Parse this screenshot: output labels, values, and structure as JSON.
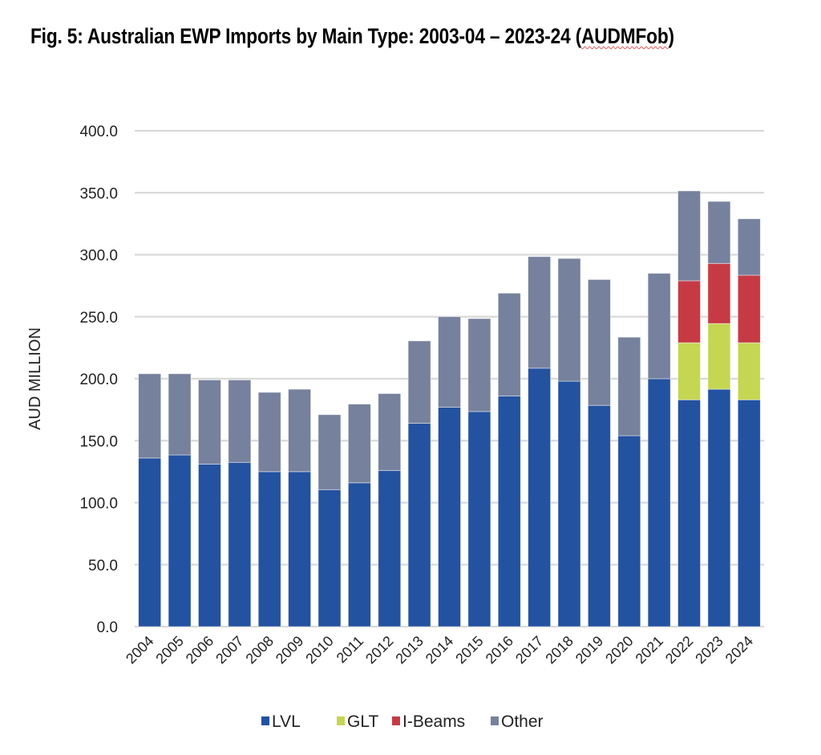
{
  "title": {
    "main": "Fig. 5: Australian EWP Imports by Main Type: 2003-04 – 2023-24 (",
    "flagged_word": "AUDMFob",
    "close": ")"
  },
  "chart_data": {
    "type": "bar",
    "stacked": true,
    "title": "Fig. 5: Australian EWP Imports by Main Type: 2003-04 – 2023-24 (AUDMFob)",
    "xlabel": "",
    "ylabel": "AUD MILLION",
    "ylim": [
      0,
      400
    ],
    "yticks": [
      "0.0",
      "50.0",
      "100.0",
      "150.0",
      "200.0",
      "250.0",
      "300.0",
      "350.0",
      "400.0"
    ],
    "ytick_values": [
      0,
      50,
      100,
      150,
      200,
      250,
      300,
      350,
      400
    ],
    "grid": true,
    "legend_position": "bottom",
    "categories": [
      "2004",
      "2005",
      "2006",
      "2007",
      "2008",
      "2009",
      "2010",
      "2011",
      "2012",
      "2013",
      "2014",
      "2015",
      "2016",
      "2017",
      "2018",
      "2019",
      "2020",
      "2021",
      "2022",
      "2023",
      "2024"
    ],
    "series": [
      {
        "name": "LVL",
        "color": "#2352A0",
        "values": [
          136,
          138.5,
          131,
          132.5,
          125,
          125,
          110.5,
          116,
          126,
          164,
          177,
          173.5,
          186,
          208.5,
          198,
          178.5,
          154,
          200,
          183,
          191.5,
          183
        ]
      },
      {
        "name": "GLT",
        "color": "#C5D652",
        "values": [
          0,
          0,
          0,
          0,
          0,
          0,
          0,
          0,
          0,
          0,
          0,
          0,
          0,
          0,
          0,
          0,
          0,
          0,
          46,
          53,
          46
        ]
      },
      {
        "name": "I-Beams",
        "color": "#C63A44",
        "values": [
          0,
          0,
          0,
          0,
          0,
          0,
          0,
          0,
          0,
          0,
          0,
          0,
          0,
          0,
          0,
          0,
          0,
          0,
          50,
          48.5,
          54.5
        ]
      },
      {
        "name": "Other",
        "color": "#76819D",
        "values": [
          68,
          65.5,
          68,
          66.5,
          64,
          66.5,
          60.5,
          63.5,
          62,
          66.5,
          73,
          75,
          83,
          90,
          99,
          101.5,
          79.5,
          85,
          72.5,
          50,
          45.5
        ]
      }
    ]
  },
  "colors": {
    "gridline": "#D9D9D9",
    "text": "#222222"
  }
}
